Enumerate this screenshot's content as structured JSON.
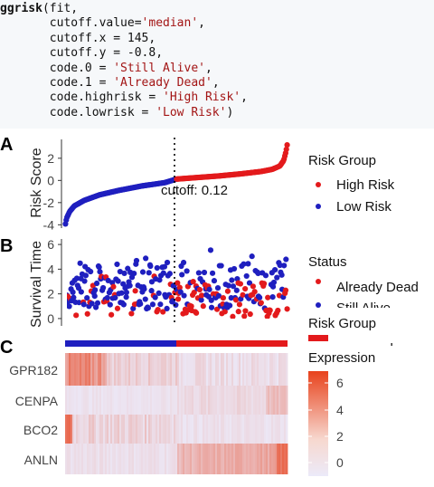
{
  "code": {
    "lines": [
      {
        "pre": "",
        "fn": "ggrisk",
        "rest": "(fit,"
      },
      {
        "pre": "       cutoff.value=",
        "str": "'median'",
        "rest": ","
      },
      {
        "pre": "       cutoff.x = ",
        "num": "145",
        "rest": ","
      },
      {
        "pre": "       cutoff.y = ",
        "num": "-0.8",
        "rest": ","
      },
      {
        "pre": "       code.0 = ",
        "str": "'Still Alive'",
        "rest": ","
      },
      {
        "pre": "       code.1 = ",
        "str": "'Already Dead'",
        "rest": ","
      },
      {
        "pre": "       code.highrisk = ",
        "str": "'High Risk'",
        "rest": ","
      },
      {
        "pre": "       code.lowrisk = ",
        "str": "'Low Risk'",
        "rest": ")"
      }
    ]
  },
  "chart_data": [
    {
      "panel": "A",
      "type": "scatter",
      "ylabel": "Risk Score",
      "yticks": [
        -4,
        -2,
        0,
        2
      ],
      "ylim": [
        -4.3,
        3.7
      ],
      "xlim": [
        0,
        290
      ],
      "cutoff_x": 145,
      "annotation": "cutoff: 0.12",
      "n_points": 290,
      "series": [
        {
          "name": "High Risk",
          "color": "#e31a1c"
        },
        {
          "name": "Low Risk",
          "color": "#1f1fbf"
        }
      ],
      "sorted_score_profile": {
        "x": [
          0,
          2,
          6,
          12,
          25,
          45,
          70,
          100,
          130,
          145,
          170,
          200,
          230,
          255,
          270,
          280,
          285,
          288,
          290
        ],
        "y": [
          -4.1,
          -3.4,
          -2.8,
          -2.3,
          -1.8,
          -1.3,
          -0.9,
          -0.5,
          -0.2,
          0.12,
          0.25,
          0.4,
          0.6,
          0.8,
          1.0,
          1.3,
          1.8,
          2.6,
          3.4
        ]
      },
      "legend": {
        "title": "Risk Group",
        "items": [
          "High Risk",
          "Low Risk"
        ],
        "placement": "right"
      }
    },
    {
      "panel": "B",
      "type": "scatter",
      "ylabel": "Survival Time",
      "yticks": [
        0,
        2,
        4,
        6
      ],
      "ylim": [
        -0.3,
        6.3
      ],
      "xlim": [
        0,
        290
      ],
      "cutoff_x": 145,
      "series": [
        {
          "name": "Already Dead",
          "color": "#e31a1c"
        },
        {
          "name": "Still Alive",
          "color": "#1f1fbf"
        }
      ],
      "legend": {
        "title": "Status",
        "items": [
          "Already Dead",
          "Still Alive"
        ],
        "placement": "right"
      }
    },
    {
      "panel": "C",
      "type": "heatmap",
      "genes": [
        "GPR182",
        "CENPA",
        "BCO2",
        "ANLN"
      ],
      "risk_group_bar": {
        "low_color": "#1f1fbf",
        "high_color": "#e31a1c",
        "split_x": 145
      },
      "legend": {
        "risk_group_title": "Risk Group",
        "risk_group_partial_items": [
          "sk",
          "sk"
        ],
        "expression_title": "Expression",
        "expression_ticks": [
          0,
          2,
          4,
          6
        ],
        "low_color": "#eceaf9",
        "high_color": "#e8421c"
      }
    }
  ],
  "panel_letters": [
    "A",
    "B",
    "C"
  ]
}
